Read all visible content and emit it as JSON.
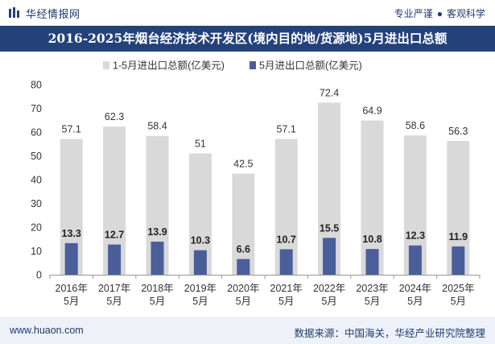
{
  "header": {
    "brand": "华经情报网",
    "slogan_left": "专业严谨",
    "slogan_sep": "●",
    "slogan_right": "客观科学"
  },
  "footer": {
    "website": "www.huaon.com",
    "source": "数据来源：中国海关，华经产业研究院整理"
  },
  "colors": {
    "header_bar": "#24427a",
    "series_total": "#d9d9d9",
    "series_may": "#4a5f9a",
    "footer_bg": "#eef2f8"
  },
  "chart_data": {
    "type": "bar",
    "title": "2016-2025年烟台经济技术开发区(境内目的地/货源地)5月进出口总额",
    "categories": [
      "2016年\n5月",
      "2017年\n5月",
      "2018年\n5月",
      "2019年\n5月",
      "2020年\n5月",
      "2021年\n5月",
      "2022年\n5月",
      "2023年\n5月",
      "2024年\n5月",
      "2025年\n5月"
    ],
    "series": [
      {
        "name": "1-5月进出口总额(亿美元)",
        "values": [
          57.1,
          62.3,
          58.4,
          51,
          42.5,
          57.1,
          72.4,
          64.9,
          58.6,
          56.3
        ]
      },
      {
        "name": "5月进出口总额(亿美元)",
        "values": [
          13.3,
          12.7,
          13.9,
          10.3,
          6.6,
          10.7,
          15.5,
          10.8,
          12.3,
          11.9
        ]
      }
    ],
    "ylim": [
      0,
      80
    ],
    "yticks": [
      0,
      10,
      20,
      30,
      40,
      50,
      60,
      70,
      80
    ],
    "legend": "top",
    "grid": false
  }
}
